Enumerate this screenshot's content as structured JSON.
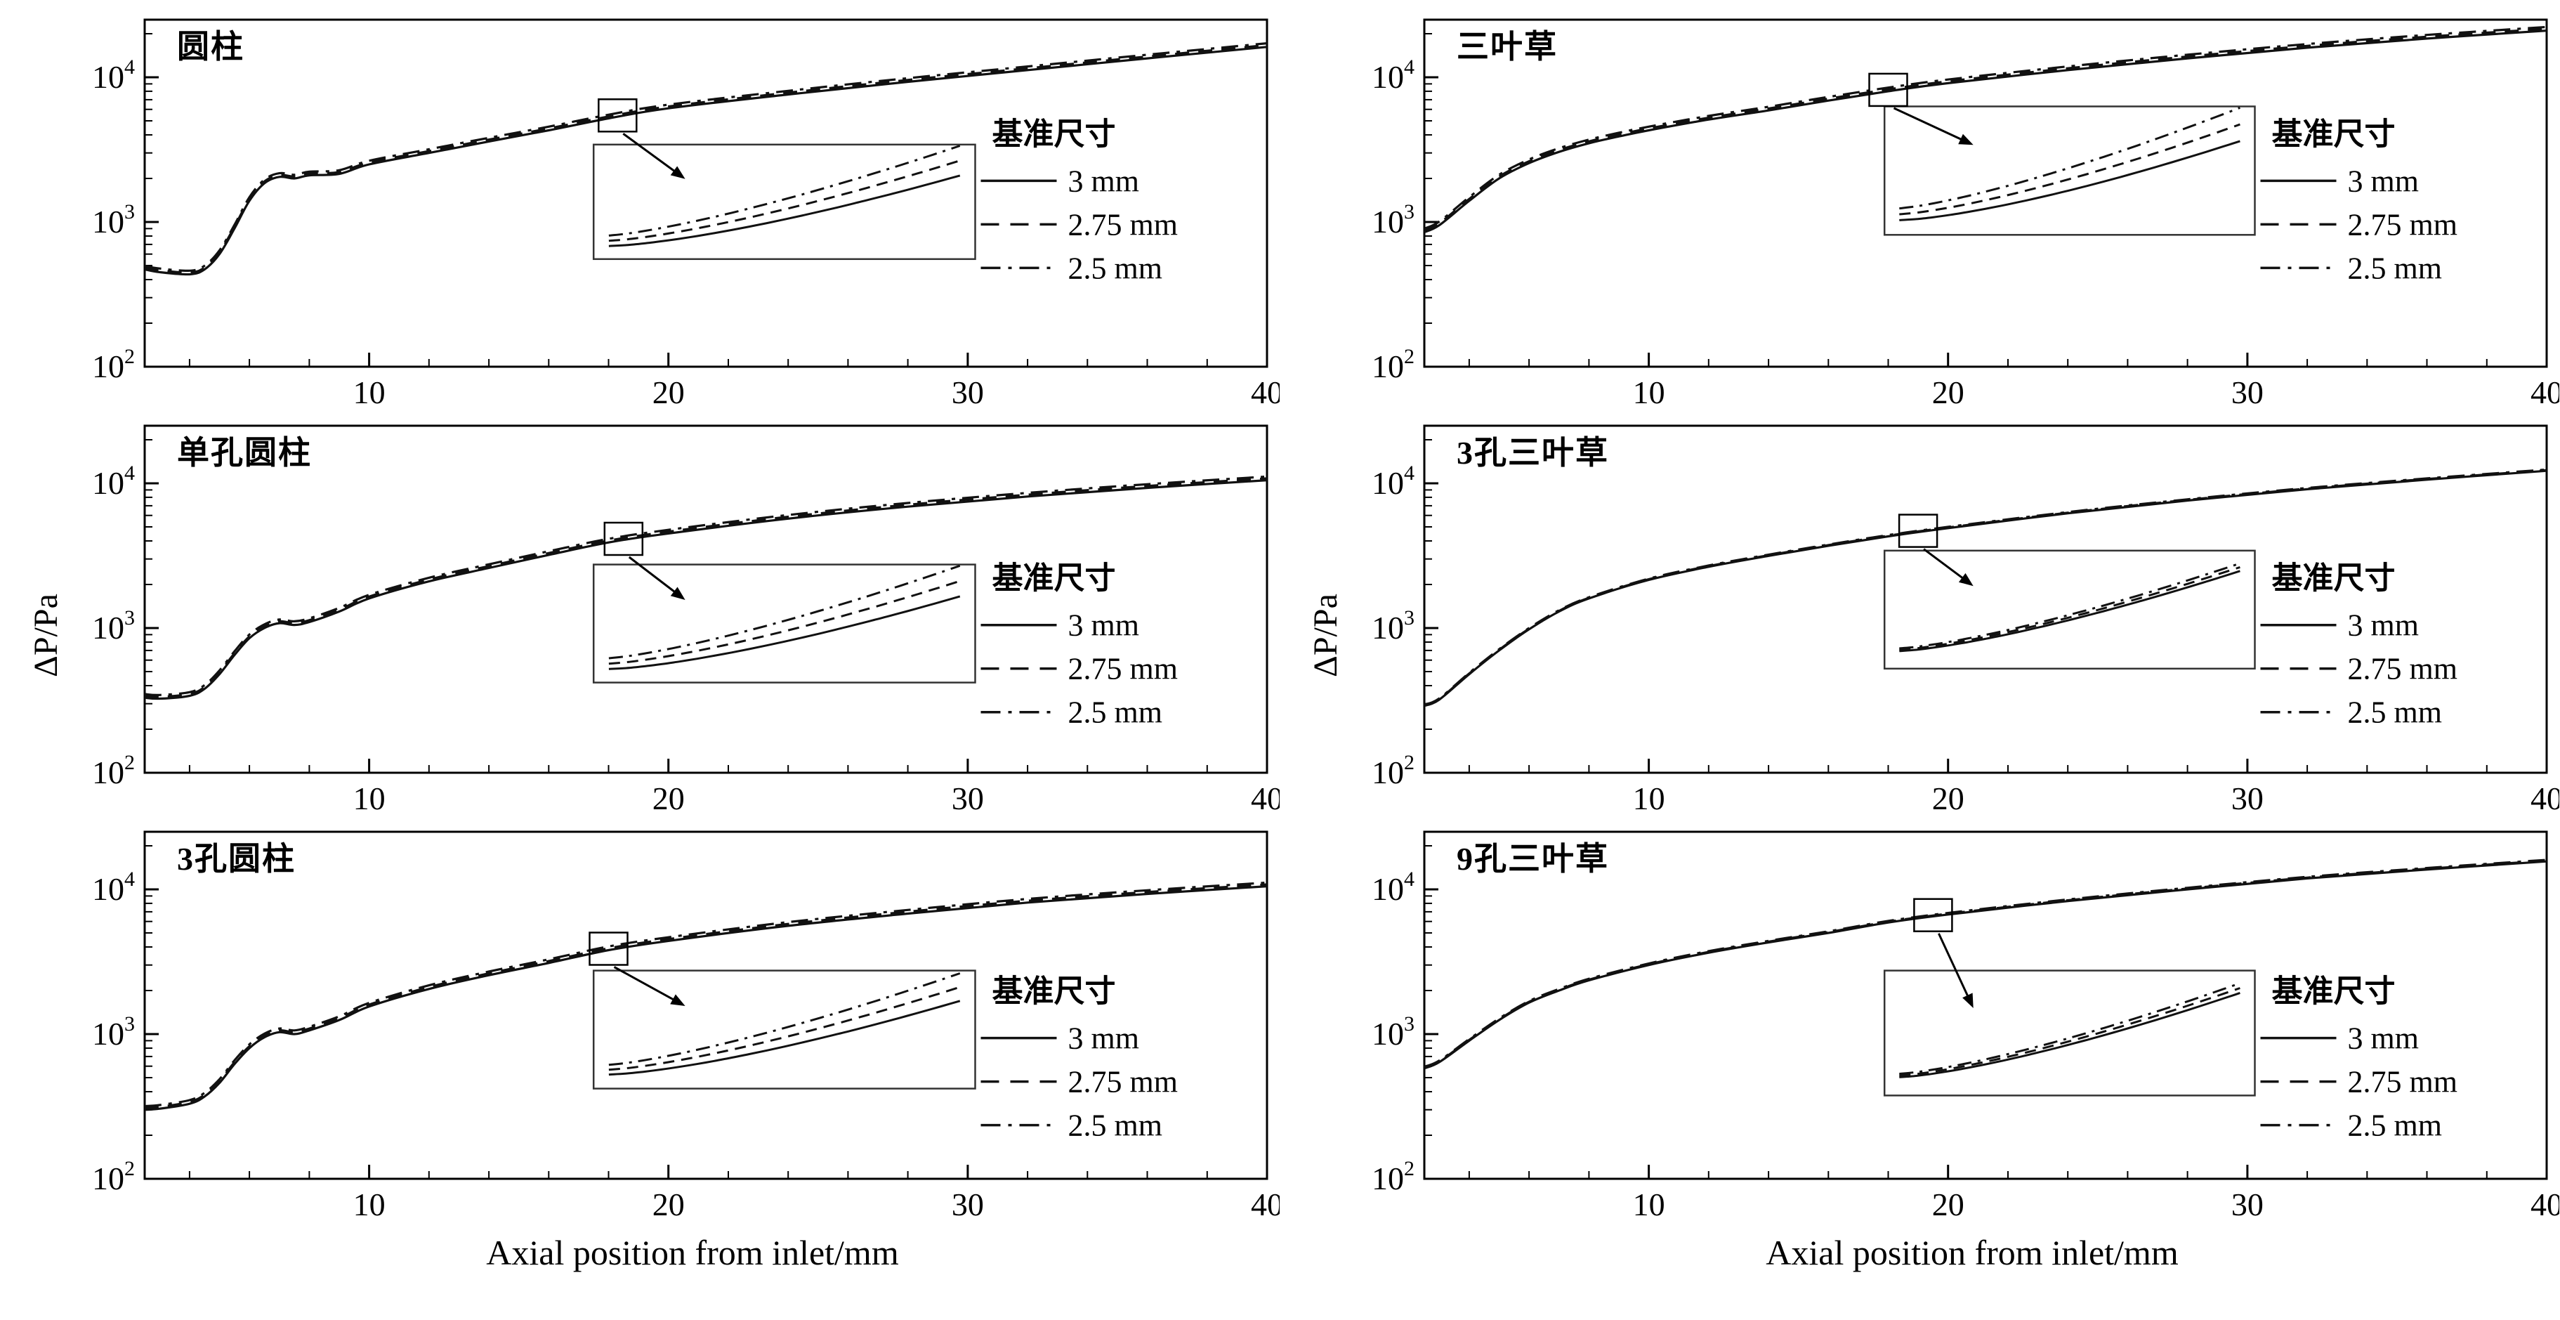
{
  "page": {
    "xlabel": "Axial position from inlet/mm",
    "ylabel": "ΔP/Pa"
  },
  "legend": {
    "title": "基准尺寸",
    "entries": [
      {
        "label": "3 mm",
        "style": "solid"
      },
      {
        "label": "2.75 mm",
        "style": "dashed"
      },
      {
        "label": "2.5 mm",
        "style": "dashdot"
      }
    ]
  },
  "axes": {
    "xlim": [
      2.5,
      40
    ],
    "ylim": [
      100,
      25000
    ],
    "xticks": [
      10,
      20,
      30,
      40
    ],
    "x_minor_step": 2,
    "yticks": [
      {
        "base": 10,
        "exp": 2
      },
      {
        "base": 10,
        "exp": 3
      },
      {
        "base": 10,
        "exp": 4
      }
    ],
    "y_scale": "log"
  },
  "chart_data": [
    {
      "title": "圆柱",
      "type": "line",
      "x": [
        2.5,
        3,
        4,
        4.5,
        5,
        5.5,
        6,
        6.5,
        7,
        7.5,
        8,
        9,
        10,
        12,
        14,
        16,
        18,
        20,
        24,
        28,
        32,
        36,
        40
      ],
      "series": [
        {
          "name": "3 mm",
          "style": "solid",
          "values": [
            470,
            450,
            435,
            470,
            600,
            900,
            1400,
            1850,
            2050,
            2000,
            2100,
            2150,
            2500,
            3000,
            3600,
            4300,
            5200,
            6100,
            7600,
            9300,
            11200,
            13500,
            16200
          ]
        },
        {
          "name": "2.75 mm",
          "style": "dashed",
          "scale_of_3mm": 1.03
        },
        {
          "name": "2.5 mm",
          "style": "dashdot",
          "scale_of_3mm": 1.06
        }
      ],
      "marker_x": 18.3,
      "inset": {
        "x": 0.4,
        "y": 0.36,
        "w": 0.34,
        "h": 0.33,
        "spread": 1.0
      },
      "legend_pos": {
        "x": 0.745,
        "y": 0.27
      }
    },
    {
      "title": "三叶草",
      "type": "line",
      "x": [
        2.5,
        3,
        4,
        5,
        6,
        7,
        8,
        9,
        10,
        12,
        14,
        16,
        18,
        20,
        24,
        28,
        32,
        36,
        40
      ],
      "series": [
        {
          "name": "3 mm",
          "style": "solid",
          "values": [
            850,
            950,
            1400,
            2000,
            2550,
            3050,
            3500,
            3900,
            4300,
            5100,
            5900,
            6900,
            8000,
            9100,
            11200,
            13500,
            16000,
            18500,
            21000
          ]
        },
        {
          "name": "2.75 mm",
          "style": "dashed",
          "scale_of_3mm": 1.03
        },
        {
          "name": "2.5 mm",
          "style": "dashdot",
          "scale_of_3mm": 1.06
        }
      ],
      "marker_x": 18.0,
      "inset": {
        "x": 0.41,
        "y": 0.25,
        "w": 0.33,
        "h": 0.37,
        "spread": 1.0
      },
      "legend_pos": {
        "x": 0.745,
        "y": 0.27
      }
    },
    {
      "title": "单孔圆柱",
      "type": "line",
      "x": [
        2.5,
        3,
        4,
        4.5,
        5,
        5.5,
        6,
        6.5,
        7,
        7.5,
        8,
        9,
        10,
        12,
        14,
        16,
        18,
        20,
        24,
        28,
        32,
        36,
        40
      ],
      "series": [
        {
          "name": "3 mm",
          "style": "solid",
          "values": [
            330,
            325,
            340,
            380,
            480,
            650,
            850,
            1000,
            1080,
            1050,
            1100,
            1300,
            1600,
            2100,
            2600,
            3200,
            3900,
            4500,
            5700,
            6900,
            8100,
            9300,
            10500
          ]
        },
        {
          "name": "2.75 mm",
          "style": "dashed",
          "scale_of_3mm": 1.03
        },
        {
          "name": "2.5 mm",
          "style": "dashdot",
          "scale_of_3mm": 1.06
        }
      ],
      "marker_x": 18.5,
      "inset": {
        "x": 0.4,
        "y": 0.4,
        "w": 0.34,
        "h": 0.34,
        "spread": 1.0
      },
      "legend_pos": {
        "x": 0.745,
        "y": 0.38
      }
    },
    {
      "title": "3孔三叶草",
      "type": "line",
      "x": [
        2.5,
        3,
        4,
        5,
        6,
        7,
        8,
        10,
        12,
        14,
        16,
        18,
        20,
        24,
        28,
        32,
        36,
        40
      ],
      "series": [
        {
          "name": "3 mm",
          "style": "solid",
          "values": [
            290,
            320,
            480,
            700,
            980,
            1300,
            1600,
            2150,
            2650,
            3150,
            3700,
            4300,
            4900,
            6200,
            7600,
            9100,
            10600,
            12200
          ]
        },
        {
          "name": "2.75 mm",
          "style": "dashed",
          "scale_of_3mm": 1.01
        },
        {
          "name": "2.5 mm",
          "style": "dashdot",
          "scale_of_3mm": 1.02
        }
      ],
      "marker_x": 19.0,
      "inset": {
        "x": 0.41,
        "y": 0.36,
        "w": 0.33,
        "h": 0.34,
        "spread": 0.25
      },
      "legend_pos": {
        "x": 0.745,
        "y": 0.38
      }
    },
    {
      "title": "3孔圆柱",
      "type": "line",
      "x": [
        2.5,
        3,
        4,
        4.5,
        5,
        5.5,
        6,
        6.5,
        7,
        7.5,
        8,
        9,
        10,
        12,
        14,
        16,
        18,
        20,
        24,
        28,
        32,
        36,
        40
      ],
      "series": [
        {
          "name": "3 mm",
          "style": "solid",
          "values": [
            300,
            305,
            330,
            370,
            460,
            620,
            800,
            950,
            1030,
            1000,
            1060,
            1250,
            1550,
            2050,
            2550,
            3100,
            3800,
            4400,
            5600,
            6800,
            8100,
            9300,
            10500
          ]
        },
        {
          "name": "2.75 mm",
          "style": "dashed",
          "scale_of_3mm": 1.03
        },
        {
          "name": "2.5 mm",
          "style": "dashdot",
          "scale_of_3mm": 1.06
        }
      ],
      "marker_x": 18.0,
      "inset": {
        "x": 0.4,
        "y": 0.4,
        "w": 0.34,
        "h": 0.34,
        "spread": 0.9
      },
      "legend_pos": {
        "x": 0.745,
        "y": 0.4
      }
    },
    {
      "title": "9孔三叶草",
      "type": "line",
      "x": [
        2.5,
        3,
        4,
        5,
        6,
        7,
        8,
        10,
        12,
        14,
        16,
        18,
        20,
        24,
        28,
        32,
        36,
        40
      ],
      "series": [
        {
          "name": "3 mm",
          "style": "solid",
          "values": [
            580,
            640,
            900,
            1250,
            1650,
            2000,
            2350,
            3000,
            3650,
            4300,
            5000,
            5900,
            6700,
            8300,
            10000,
            11900,
            13700,
            15600
          ]
        },
        {
          "name": "2.75 mm",
          "style": "dashed",
          "scale_of_3mm": 1.012
        },
        {
          "name": "2.5 mm",
          "style": "dashdot",
          "scale_of_3mm": 1.025
        }
      ],
      "marker_x": 19.5,
      "inset": {
        "x": 0.41,
        "y": 0.4,
        "w": 0.33,
        "h": 0.36,
        "spread": 0.3
      },
      "legend_pos": {
        "x": 0.745,
        "y": 0.4
      }
    }
  ]
}
